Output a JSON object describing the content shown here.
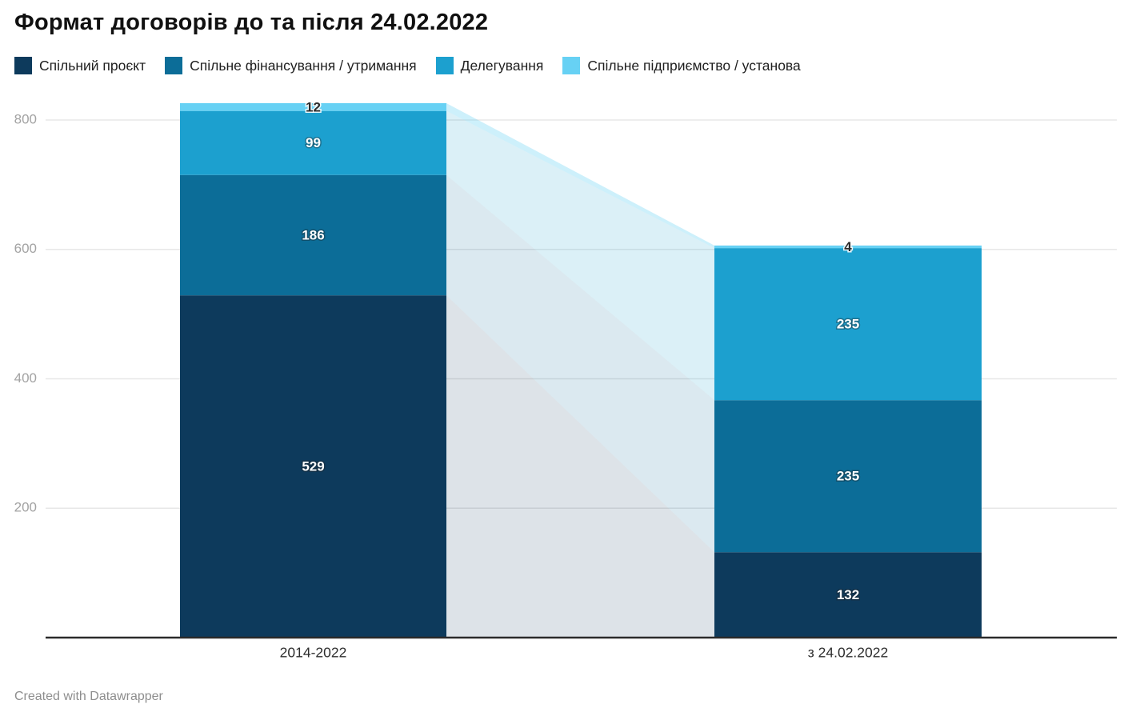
{
  "title": "Формат договорів до та після 24.02.2022",
  "footer": "Created with Datawrapper",
  "chart_data": {
    "type": "bar",
    "subtype": "stacked-column-with-connectors",
    "title": "Формат договорів до та після 24.02.2022",
    "categories": [
      "2014-2022",
      "з 24.02.2022"
    ],
    "series": [
      {
        "name": "Спільний проєкт",
        "color": "#0d3a5c",
        "label_color": "light",
        "connector_opacity": 0.14,
        "values": [
          529,
          132
        ]
      },
      {
        "name": "Спільне фінансування / утримання",
        "color": "#0c6d98",
        "label_color": "light",
        "connector_opacity": 0.15,
        "values": [
          186,
          235
        ]
      },
      {
        "name": "Делегування",
        "color": "#1ca0cf",
        "label_color": "light",
        "connector_opacity": 0.16,
        "values": [
          99,
          235
        ]
      },
      {
        "name": "Спільне підприємство / установа",
        "color": "#67d1f4",
        "label_color": "dark",
        "connector_opacity": 0.33,
        "values": [
          12,
          4
        ]
      }
    ],
    "totals": [
      826,
      606
    ],
    "yticks": [
      200,
      400,
      600,
      800
    ],
    "ylim": [
      0,
      826
    ],
    "grid": true,
    "legend_position": "top",
    "colors": {
      "gridline": "#e7e7e7",
      "axis_line": "#2b2b2b",
      "tick_label": "#a3a3a3",
      "category_label": "#2e2e2e"
    }
  }
}
